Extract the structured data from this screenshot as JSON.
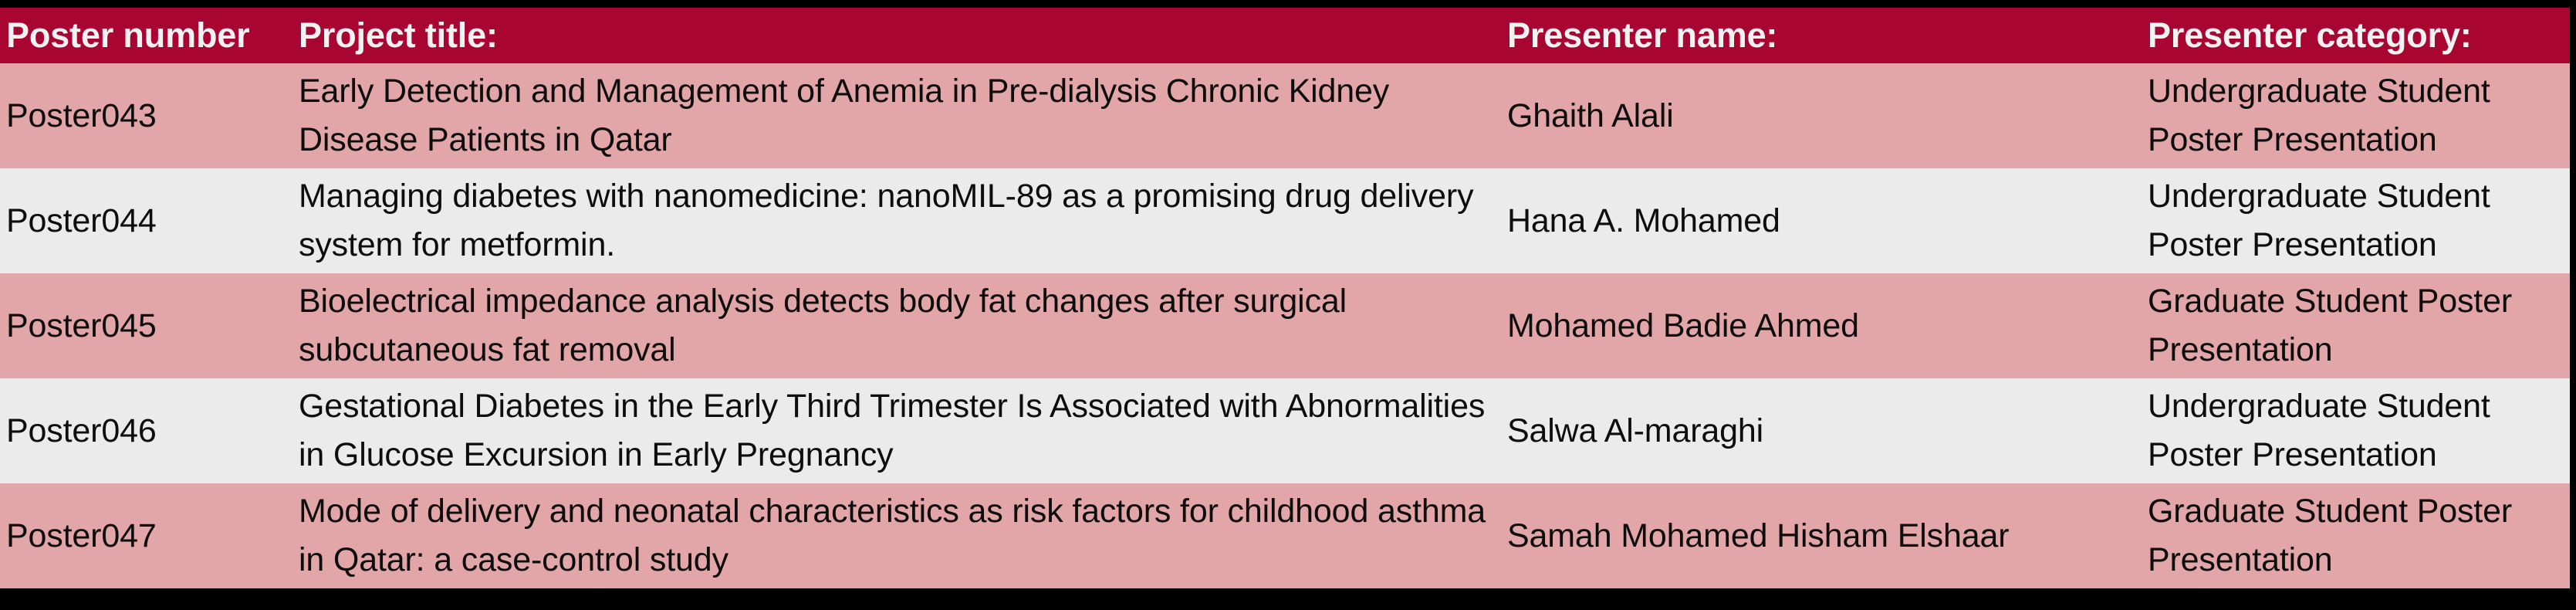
{
  "table": {
    "columns": [
      {
        "label": "Poster number"
      },
      {
        "label": "Project title:"
      },
      {
        "label": "Presenter name:"
      },
      {
        "label": "Presenter category:"
      }
    ],
    "rows": [
      {
        "poster": "Poster043",
        "title": "Early Detection and Management of Anemia in Pre-dialysis Chronic Kidney Disease Patients in Qatar",
        "presenter": "Ghaith Alali",
        "category": "Undergraduate Student Poster Presentation"
      },
      {
        "poster": "Poster044",
        "title": "Managing diabetes with nanomedicine: nanoMIL-89 as a promising drug delivery system for metformin.",
        "presenter": "Hana A. Mohamed",
        "category": "Undergraduate Student Poster Presentation"
      },
      {
        "poster": "Poster045",
        "title": "Bioelectrical impedance analysis detects body fat changes after surgical subcutaneous fat removal",
        "presenter": "Mohamed Badie Ahmed",
        "category": "Graduate Student Poster Presentation"
      },
      {
        "poster": "Poster046",
        "title": "Gestational Diabetes in the Early Third Trimester Is Associated with Abnormalities in Glucose Excursion in Early Pregnancy",
        "presenter": "Salwa Al-maraghi",
        "category": "Undergraduate Student Poster Presentation"
      },
      {
        "poster": "Poster047",
        "title": "Mode of delivery and neonatal characteristics as risk factors for childhood asthma in Qatar: a case-control study",
        "presenter": "Samah Mohamed Hisham Elshaar",
        "category": "Graduate Student Poster Presentation"
      }
    ]
  },
  "colors": {
    "header_bg": "#A80533",
    "row_pink": "#E3A6A8",
    "row_gray": "#ECEBEB",
    "header_text": "#F2F2F2",
    "body_text": "#0D0D0D",
    "frame_black": "#000000"
  }
}
